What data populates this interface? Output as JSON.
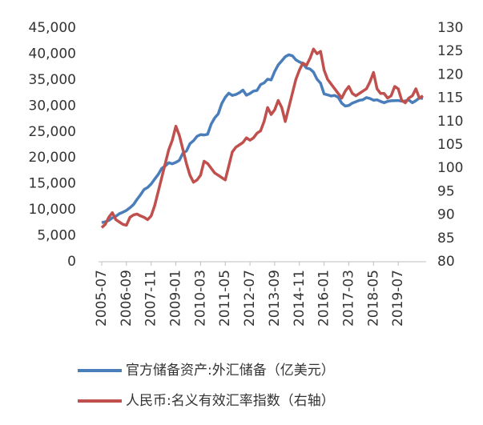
{
  "chart_data": {
    "type": "line",
    "categories": [
      "2005-07",
      null,
      null,
      null,
      null,
      null,
      null,
      "2006-09",
      null,
      null,
      null,
      null,
      null,
      null,
      "2007-11",
      null,
      null,
      null,
      null,
      null,
      null,
      "2009-01",
      null,
      null,
      null,
      null,
      null,
      null,
      "2010-03",
      null,
      null,
      null,
      null,
      null,
      null,
      "2011-05",
      null,
      null,
      null,
      null,
      null,
      null,
      "2012-07",
      null,
      null,
      null,
      null,
      null,
      null,
      "2013-09",
      null,
      null,
      null,
      null,
      null,
      null,
      "2014-11",
      null,
      null,
      null,
      null,
      null,
      null,
      "2016-01",
      null,
      null,
      null,
      null,
      null,
      null,
      "2017-03",
      null,
      null,
      null,
      null,
      null,
      null,
      "2018-05",
      null,
      null,
      null,
      null,
      null,
      null,
      "2019-07",
      null,
      null,
      null,
      null,
      null,
      null,
      null
    ],
    "series": [
      {
        "name": "官方储备资产:外汇储备（亿美元）",
        "color": "#4a7ebb",
        "axis": "y",
        "values": [
          7533,
          7690,
          7950,
          8450,
          8750,
          9250,
          9540,
          9880,
          10400,
          11000,
          12000,
          12900,
          13900,
          14300,
          14970,
          15900,
          16800,
          17970,
          18450,
          19060,
          18850,
          19130,
          19540,
          20900,
          21300,
          22730,
          23300,
          24150,
          24470,
          24400,
          24540,
          26480,
          27680,
          28470,
          30450,
          31660,
          32450,
          32020,
          32200,
          32540,
          33050,
          32060,
          32400,
          32850,
          32980,
          34100,
          34430,
          35150,
          35000,
          36630,
          37890,
          38670,
          39480,
          39840,
          39660,
          38870,
          38470,
          38130,
          37300,
          37110,
          36510,
          35140,
          34380,
          32310,
          32130,
          31910,
          32010,
          31660,
          30520,
          29980,
          30090,
          30540,
          30810,
          31080,
          31190,
          31610,
          31430,
          31100,
          31180,
          30870,
          30620,
          30880,
          30990,
          31010,
          31040,
          30920,
          30960,
          31150,
          30610,
          31020,
          31540,
          31430
        ]
      },
      {
        "name": "人民币:名义有效汇率指数（右轴）",
        "color": "#c0504d",
        "axis": "y2",
        "values": [
          87.3,
          88.0,
          89.5,
          90.5,
          89.0,
          88.5,
          88.0,
          87.8,
          89.5,
          90.0,
          90.2,
          89.8,
          89.5,
          89.0,
          89.8,
          92.0,
          95.0,
          98.0,
          101,
          104,
          106,
          109,
          107,
          104,
          101,
          98.5,
          97.0,
          97.5,
          98.5,
          101.5,
          101,
          100,
          99,
          98.5,
          98,
          97.5,
          100.5,
          103.5,
          104.5,
          105,
          105.5,
          106.5,
          106,
          106.5,
          107.5,
          108,
          110,
          113,
          111.5,
          112.5,
          114.5,
          113,
          110,
          113,
          116,
          119,
          121,
          122.5,
          122,
          123.5,
          125.5,
          124.5,
          125,
          121,
          119,
          118,
          117,
          116,
          115,
          116.5,
          117.5,
          116,
          115.5,
          116,
          116.5,
          117,
          118.5,
          120.5,
          117,
          116,
          116,
          115,
          115.5,
          117.5,
          117,
          114.5,
          114,
          115,
          115.5,
          117,
          115,
          115.5
        ]
      }
    ],
    "ylim": [
      0,
      45000
    ],
    "yticks": [
      0,
      {
        "value": 5000,
        "label": "5,000"
      },
      {
        "value": 10000,
        "label": "10,000"
      },
      {
        "value": 15000,
        "label": "15,000"
      },
      {
        "value": 20000,
        "label": "20,000"
      },
      {
        "value": 25000,
        "label": "25,000"
      },
      {
        "value": 30000,
        "label": "30,000"
      },
      {
        "value": 35000,
        "label": "35,000"
      },
      {
        "value": 40000,
        "label": "40,000"
      },
      {
        "value": 45000,
        "label": "45,000"
      }
    ],
    "y2lim": [
      80,
      130
    ],
    "y2ticks": [
      80,
      85,
      90,
      95,
      100,
      105,
      110,
      115,
      120,
      125,
      130
    ],
    "grid": false
  }
}
